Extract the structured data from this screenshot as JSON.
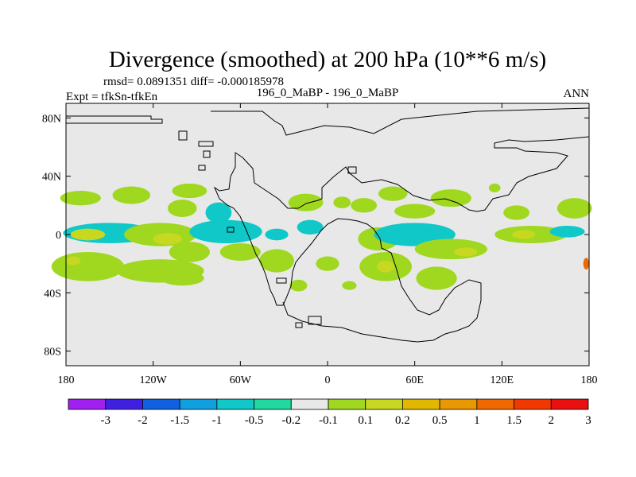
{
  "chart_data": {
    "type": "heatmap",
    "title": "Divergence (smoothed) at 200 hPa (10**6 m/s)",
    "stats": "rmsd= 0.0891351 diff= -0.000185978",
    "experiment": "Expt = tfkSn-tfkEn",
    "case": "196_0_MaBP - 196_0_MaBP",
    "period": "ANN",
    "xlim": [
      -180,
      180
    ],
    "ylim": [
      -90,
      90
    ],
    "x_ticks": [
      {
        "value": -180,
        "label": "180"
      },
      {
        "value": -120,
        "label": "120W"
      },
      {
        "value": -60,
        "label": "60W"
      },
      {
        "value": 0,
        "label": "0"
      },
      {
        "value": 60,
        "label": "60E"
      },
      {
        "value": 120,
        "label": "120E"
      },
      {
        "value": 180,
        "label": "180"
      }
    ],
    "y_ticks": [
      {
        "value": 80,
        "label": "80N"
      },
      {
        "value": 40,
        "label": "40N"
      },
      {
        "value": 0,
        "label": "0"
      },
      {
        "value": -40,
        "label": "40S"
      },
      {
        "value": -80,
        "label": "80S"
      }
    ],
    "colorbar": {
      "labels": [
        "-3",
        "-2",
        "-1.5",
        "-1",
        "-0.5",
        "-0.2",
        "-0.1",
        "0.1",
        "0.2",
        "0.5",
        "1",
        "1.5",
        "2",
        "3"
      ],
      "colors": [
        "#a020f0",
        "#4020e0",
        "#1060e0",
        "#10a0e0",
        "#10c8c8",
        "#20d8a0",
        "#e8e8e8",
        "#a0d820",
        "#c8d820",
        "#e0b800",
        "#e89800",
        "#f06800",
        "#f03800",
        "#e81010"
      ]
    },
    "background_color": "#e8e8e8",
    "patches": [
      {
        "lon": -170,
        "lat": 25,
        "rx": 14,
        "ry": 5,
        "color": "#a0d820"
      },
      {
        "lon": -135,
        "lat": 27,
        "rx": 13,
        "ry": 6,
        "color": "#a0d820"
      },
      {
        "lon": -95,
        "lat": 30,
        "rx": 12,
        "ry": 5,
        "color": "#a0d820"
      },
      {
        "lon": -100,
        "lat": 18,
        "rx": 10,
        "ry": 6,
        "color": "#a0d820"
      },
      {
        "lon": -75,
        "lat": 15,
        "rx": 9,
        "ry": 7,
        "color": "#10c8c8"
      },
      {
        "lon": -15,
        "lat": 22,
        "rx": 12,
        "ry": 6,
        "color": "#a0d820"
      },
      {
        "lon": 10,
        "lat": 22,
        "rx": 6,
        "ry": 4,
        "color": "#a0d820"
      },
      {
        "lon": 25,
        "lat": 20,
        "rx": 9,
        "ry": 5,
        "color": "#a0d820"
      },
      {
        "lon": 45,
        "lat": 28,
        "rx": 10,
        "ry": 5,
        "color": "#a0d820"
      },
      {
        "lon": 85,
        "lat": 25,
        "rx": 14,
        "ry": 6,
        "color": "#a0d820"
      },
      {
        "lon": 60,
        "lat": 16,
        "rx": 14,
        "ry": 5,
        "color": "#a0d820"
      },
      {
        "lon": 130,
        "lat": 15,
        "rx": 9,
        "ry": 5,
        "color": "#a0d820"
      },
      {
        "lon": 170,
        "lat": 18,
        "rx": 12,
        "ry": 7,
        "color": "#a0d820"
      },
      {
        "lon": -150,
        "lat": 1,
        "rx": 32,
        "ry": 7,
        "color": "#10c8c8"
      },
      {
        "lon": -165,
        "lat": 0,
        "rx": 12,
        "ry": 4,
        "color": "#c8d820"
      },
      {
        "lon": -115,
        "lat": 0,
        "rx": 25,
        "ry": 8,
        "color": "#a0d820"
      },
      {
        "lon": -110,
        "lat": -3,
        "rx": 10,
        "ry": 4,
        "color": "#c8d820"
      },
      {
        "lon": -70,
        "lat": 2,
        "rx": 25,
        "ry": 8,
        "color": "#10c8c8"
      },
      {
        "lon": -35,
        "lat": 0,
        "rx": 8,
        "ry": 4,
        "color": "#10c8c8"
      },
      {
        "lon": -12,
        "lat": 5,
        "rx": 9,
        "ry": 5,
        "color": "#10c8c8"
      },
      {
        "lon": 35,
        "lat": -3,
        "rx": 14,
        "ry": 8,
        "color": "#a0d820"
      },
      {
        "lon": 60,
        "lat": 0,
        "rx": 28,
        "ry": 8,
        "color": "#10c8c8"
      },
      {
        "lon": 85,
        "lat": -10,
        "rx": 25,
        "ry": 7,
        "color": "#a0d820"
      },
      {
        "lon": 95,
        "lat": -12,
        "rx": 8,
        "ry": 3,
        "color": "#c8d820"
      },
      {
        "lon": 140,
        "lat": 0,
        "rx": 25,
        "ry": 6,
        "color": "#a0d820"
      },
      {
        "lon": 135,
        "lat": 0,
        "rx": 8,
        "ry": 3,
        "color": "#c8d820"
      },
      {
        "lon": 165,
        "lat": 2,
        "rx": 12,
        "ry": 4,
        "color": "#10c8c8"
      },
      {
        "lon": -95,
        "lat": -12,
        "rx": 14,
        "ry": 7,
        "color": "#a0d820"
      },
      {
        "lon": -60,
        "lat": -12,
        "rx": 14,
        "ry": 6,
        "color": "#a0d820"
      },
      {
        "lon": -35,
        "lat": -18,
        "rx": 12,
        "ry": 8,
        "color": "#a0d820"
      },
      {
        "lon": 0,
        "lat": -20,
        "rx": 8,
        "ry": 5,
        "color": "#a0d820"
      },
      {
        "lon": 40,
        "lat": -22,
        "rx": 18,
        "ry": 10,
        "color": "#a0d820"
      },
      {
        "lon": 40,
        "lat": -22,
        "rx": 6,
        "ry": 4,
        "color": "#c8d820"
      },
      {
        "lon": 75,
        "lat": -30,
        "rx": 14,
        "ry": 8,
        "color": "#a0d820"
      },
      {
        "lon": -165,
        "lat": -22,
        "rx": 25,
        "ry": 10,
        "color": "#a0d820"
      },
      {
        "lon": -175,
        "lat": -18,
        "rx": 5,
        "ry": 3,
        "color": "#c8d820"
      },
      {
        "lon": -115,
        "lat": -25,
        "rx": 30,
        "ry": 8,
        "color": "#a0d820"
      },
      {
        "lon": -100,
        "lat": -30,
        "rx": 15,
        "ry": 5,
        "color": "#a0d820"
      },
      {
        "lon": -20,
        "lat": -35,
        "rx": 6,
        "ry": 4,
        "color": "#a0d820"
      },
      {
        "lon": 15,
        "lat": -35,
        "rx": 5,
        "ry": 3,
        "color": "#a0d820"
      },
      {
        "lon": 178,
        "lat": -20,
        "rx": 2,
        "ry": 4,
        "color": "#f06800"
      },
      {
        "lon": 115,
        "lat": 32,
        "rx": 4,
        "ry": 3,
        "color": "#a0d820"
      }
    ]
  }
}
